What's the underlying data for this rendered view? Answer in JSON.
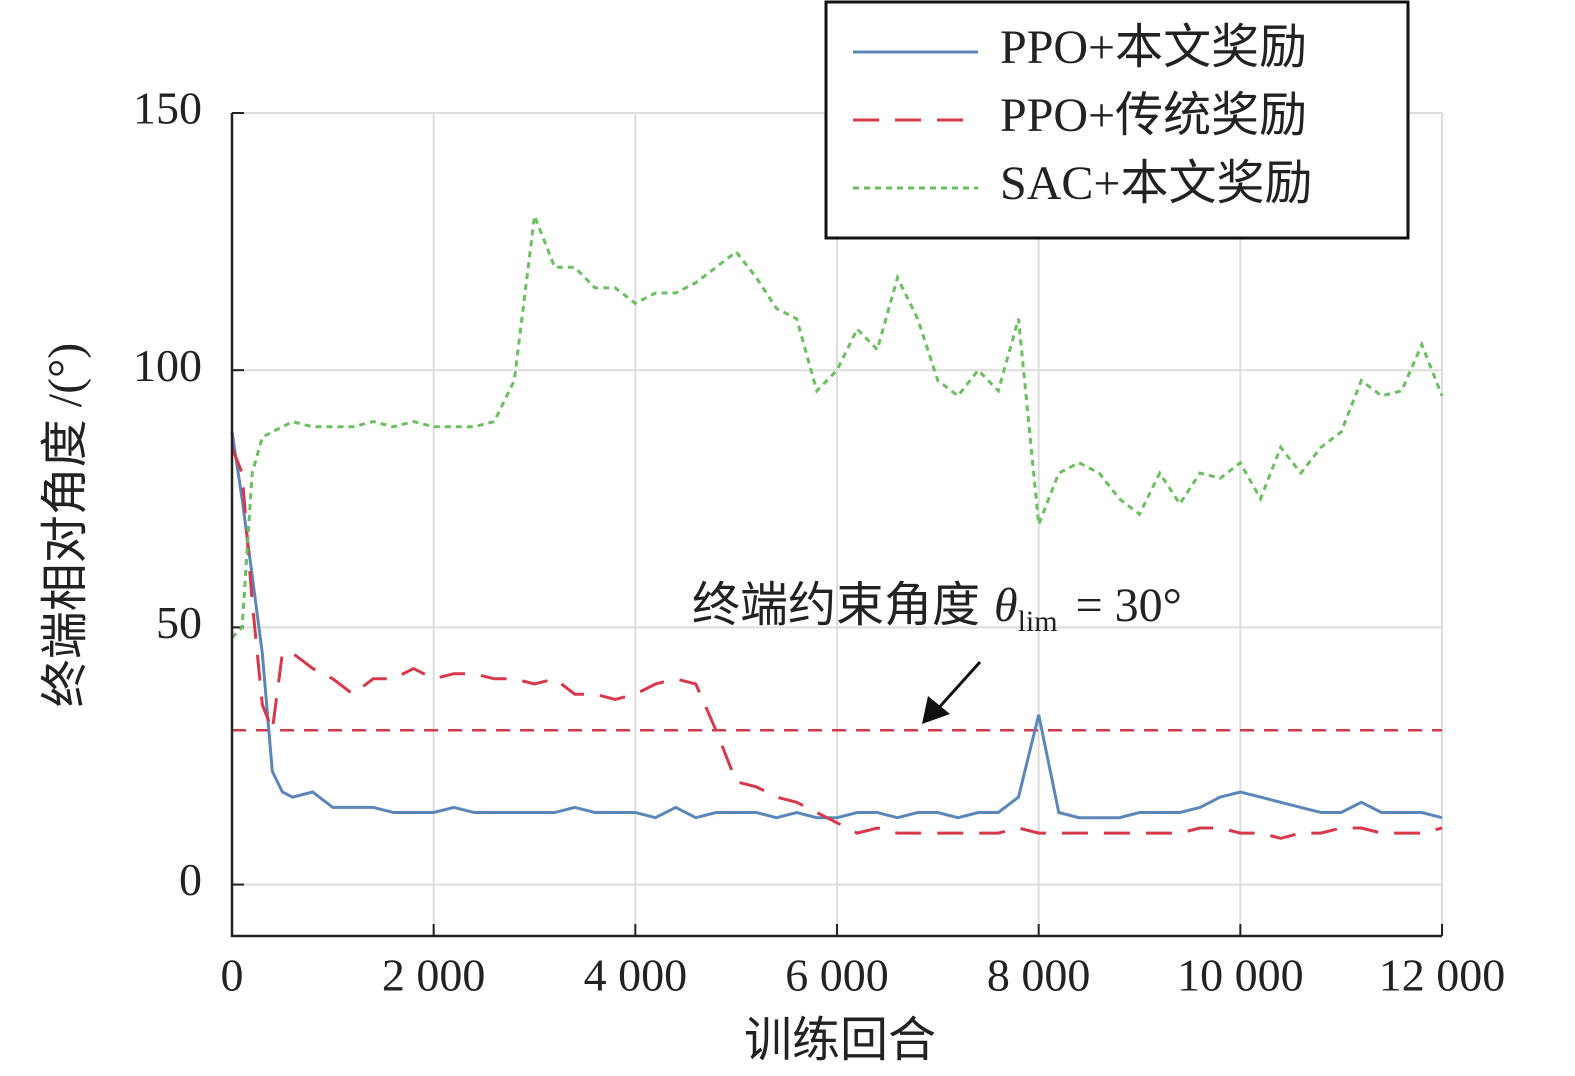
{
  "chart_data": {
    "type": "line",
    "x_label": "训练回合",
    "y_label": "终端相对角度 /(°)",
    "xlim": [
      0,
      12000
    ],
    "ylim": [
      -10,
      150
    ],
    "xticks": [
      0,
      {
        "value": 2000,
        "label": "2 000"
      },
      {
        "value": 4000,
        "label": "4 000"
      },
      {
        "value": 6000,
        "label": "6 000"
      },
      {
        "value": 8000,
        "label": "8 000"
      },
      {
        "value": 10000,
        "label": "10 000"
      },
      {
        "value": 12000,
        "label": "12 000"
      }
    ],
    "yticks": [
      0,
      50,
      100,
      150
    ],
    "grid": true,
    "legend": "upper right",
    "x": [
      0,
      100,
      200,
      300,
      400,
      500,
      600,
      800,
      1000,
      1200,
      1400,
      1600,
      1800,
      2000,
      2200,
      2400,
      2600,
      2800,
      3000,
      3200,
      3400,
      3600,
      3800,
      4000,
      4200,
      4400,
      4600,
      4800,
      5000,
      5200,
      5400,
      5600,
      5800,
      6000,
      6200,
      6400,
      6600,
      6800,
      7000,
      7200,
      7400,
      7600,
      7800,
      8000,
      8200,
      8400,
      8600,
      8800,
      9000,
      9200,
      9400,
      9600,
      9800,
      10000,
      10200,
      10400,
      10600,
      10800,
      11000,
      11200,
      11400,
      11600,
      11800,
      12000
    ],
    "series": [
      {
        "name": "PPO+本文奖励",
        "color": "#5b87b8",
        "linestyle": "solid",
        "values": [
          88,
          75,
          60,
          45,
          22,
          18,
          17,
          18,
          15,
          15,
          15,
          14,
          14,
          14,
          15,
          14,
          14,
          14,
          14,
          14,
          15,
          14,
          14,
          14,
          13,
          15,
          13,
          14,
          14,
          14,
          13,
          14,
          13,
          13,
          14,
          14,
          13,
          14,
          14,
          13,
          14,
          14,
          17,
          33,
          14,
          13,
          13,
          13,
          14,
          14,
          14,
          15,
          17,
          18,
          17,
          16,
          15,
          14,
          14,
          16,
          14,
          14,
          14,
          13
        ]
      },
      {
        "name": "PPO+传统奖励",
        "color": "#d6394b",
        "linestyle": "dashed",
        "values": [
          85,
          80,
          55,
          35,
          30,
          45,
          45,
          42,
          40,
          37,
          40,
          40,
          42,
          40,
          41,
          41,
          40,
          40,
          39,
          40,
          37,
          37,
          36,
          37,
          39,
          40,
          39,
          30,
          20,
          19,
          17,
          16,
          14,
          12,
          10,
          11,
          10,
          10,
          10,
          10,
          10,
          10,
          11,
          10,
          10,
          10,
          10,
          10,
          10,
          10,
          10,
          11,
          11,
          10,
          10,
          9,
          10,
          10,
          11,
          11,
          10,
          10,
          10,
          11
        ]
      },
      {
        "name": "SAC+本文奖励",
        "color": "#6abf5e",
        "linestyle": "dotted",
        "values": [
          48,
          50,
          80,
          87,
          88,
          89,
          90,
          89,
          89,
          89,
          90,
          89,
          90,
          89,
          89,
          89,
          90,
          98,
          130,
          120,
          120,
          116,
          116,
          113,
          115,
          115,
          117,
          120,
          123,
          118,
          112,
          110,
          96,
          100,
          108,
          104,
          118,
          110,
          98,
          95,
          100,
          96,
          110,
          70,
          80,
          82,
          80,
          75,
          72,
          80,
          74,
          80,
          79,
          82,
          75,
          85,
          80,
          85,
          88,
          98,
          95,
          96,
          105,
          95
        ]
      }
    ],
    "reference_line": {
      "value": 30,
      "color": "#d6394b"
    },
    "annotation": {
      "text": "终端约束角度",
      "symbol": "θ",
      "subscript": "lim",
      "equation": "= 30°"
    }
  }
}
